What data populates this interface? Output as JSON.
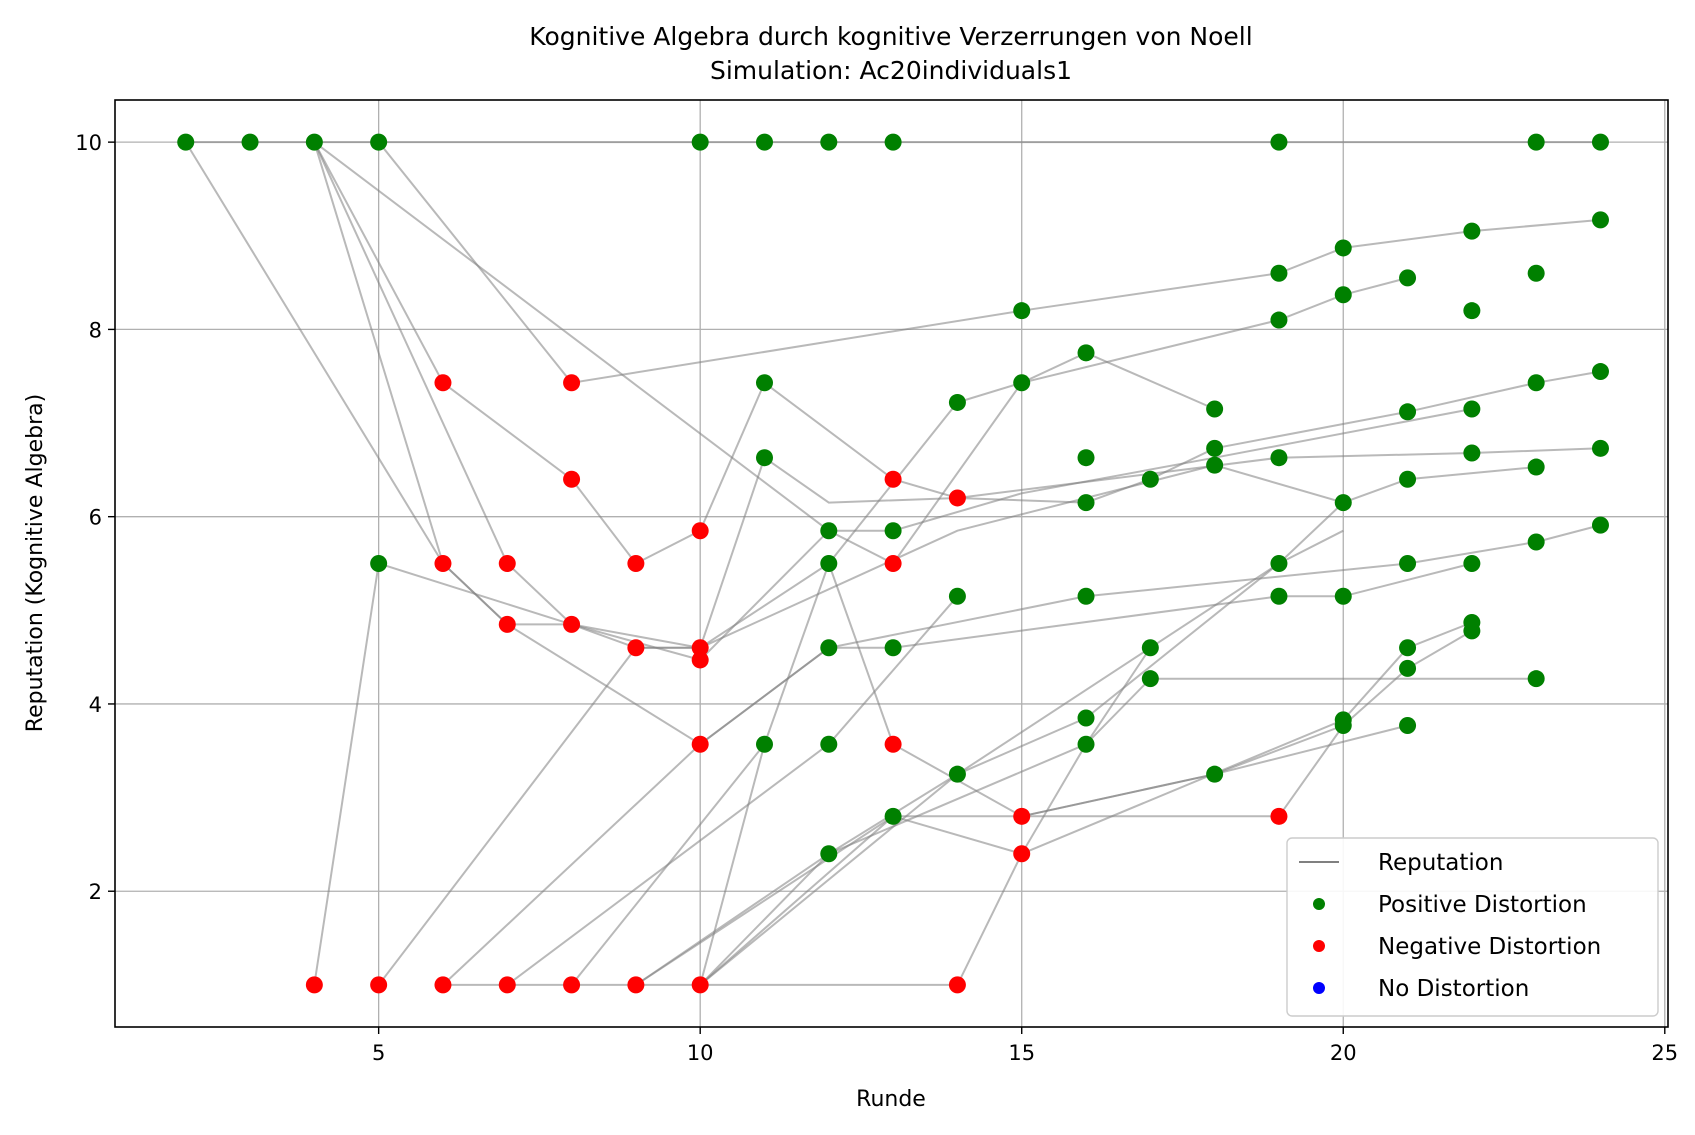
{
  "chart_data": {
    "type": "scatter",
    "title": "Kognitive Algebra durch kognitive Verzerrungen von Noell",
    "subtitle": "Simulation: Ac20individuals1",
    "xlabel": "Runde",
    "ylabel": "Reputation (Kognitive Algebra)",
    "xlim": [
      0.9,
      25.05
    ],
    "ylim": [
      0.55,
      10.45
    ],
    "x_ticks": [
      5,
      10,
      15,
      20,
      25
    ],
    "x_tick_labels": [
      "5",
      "10",
      "15",
      "20",
      "25"
    ],
    "y_ticks": [
      2,
      4,
      6,
      8,
      10
    ],
    "y_tick_labels": [
      "2",
      "4",
      "6",
      "8",
      "10"
    ],
    "grid": true,
    "legend_position": "lower-right",
    "colors": {
      "reputation_line": "#808080",
      "positive": "#008000",
      "negative": "#ff0000",
      "none": "#0000ff"
    },
    "legend": [
      {
        "label": "Reputation",
        "kind": "line",
        "color": "#808080"
      },
      {
        "label": "Positive Distortion",
        "kind": "dot",
        "color": "#008000"
      },
      {
        "label": "Negative Distortion",
        "kind": "dot",
        "color": "#ff0000"
      },
      {
        "label": "No Distortion",
        "kind": "dot",
        "color": "#0000ff"
      }
    ],
    "series": [
      {
        "points": [
          [
            2,
            10
          ],
          [
            3,
            10
          ],
          [
            4,
            10
          ],
          [
            5,
            10
          ],
          [
            10,
            10
          ],
          [
            11,
            10
          ],
          [
            12,
            10
          ],
          [
            13,
            10
          ],
          [
            19,
            10
          ],
          [
            23,
            10
          ],
          [
            24,
            10
          ]
        ]
      },
      {
        "points": [
          [
            2,
            10
          ],
          [
            6,
            5.5
          ],
          [
            7,
            4.85
          ],
          [
            8,
            4.85
          ],
          [
            9,
            4.6
          ],
          [
            10,
            4.6
          ],
          [
            11,
            6.63
          ],
          [
            12,
            6.15
          ],
          [
            14,
            6.2
          ],
          [
            19,
            6.63
          ],
          [
            22,
            6.68
          ],
          [
            24,
            6.73
          ]
        ]
      },
      {
        "points": [
          [
            4,
            10
          ],
          [
            6,
            7.43
          ],
          [
            8,
            6.4
          ],
          [
            9,
            5.5
          ],
          [
            10,
            5.85
          ],
          [
            11,
            7.43
          ],
          [
            13,
            6.4
          ],
          [
            14,
            6.2
          ],
          [
            16,
            6.15
          ],
          [
            17,
            6.4
          ],
          [
            18,
            6.73
          ],
          [
            21,
            7.12
          ],
          [
            23,
            7.43
          ],
          [
            24,
            7.55
          ]
        ]
      },
      {
        "points": [
          [
            4,
            10
          ],
          [
            7,
            5.5
          ],
          [
            8,
            4.85
          ],
          [
            10,
            4.47
          ],
          [
            12,
            5.85
          ],
          [
            13,
            5.5
          ],
          [
            15,
            7.43
          ],
          [
            16,
            7.75
          ],
          [
            18,
            7.15
          ]
        ]
      },
      {
        "points": [
          [
            4,
            10
          ],
          [
            6,
            5.5
          ],
          [
            7,
            4.85
          ],
          [
            10,
            3.57
          ],
          [
            12,
            4.6
          ],
          [
            13,
            4.6
          ],
          [
            19,
            5.15
          ],
          [
            20,
            5.15
          ],
          [
            22,
            5.5
          ]
        ]
      },
      {
        "points": [
          [
            4,
            10
          ],
          [
            12,
            5.85
          ],
          [
            13,
            5.85
          ],
          [
            15,
            6.25
          ],
          [
            18,
            6.63
          ],
          [
            22,
            7.15
          ]
        ]
      },
      {
        "points": [
          [
            5,
            10
          ],
          [
            8,
            7.43
          ],
          [
            15,
            8.2
          ],
          [
            19,
            8.6
          ],
          [
            20,
            8.87
          ],
          [
            22,
            9.05
          ],
          [
            24,
            9.17
          ]
        ]
      },
      {
        "points": [
          [
            4,
            1
          ],
          [
            5,
            5.5
          ],
          [
            8,
            4.85
          ],
          [
            10,
            4.6
          ],
          [
            14,
            5.85
          ],
          [
            18,
            6.55
          ],
          [
            20,
            6.15
          ],
          [
            21,
            6.4
          ],
          [
            23,
            6.53
          ]
        ]
      },
      {
        "points": [
          [
            5,
            1
          ],
          [
            9,
            4.6
          ],
          [
            10,
            4.6
          ],
          [
            12,
            5.5
          ],
          [
            14,
            7.22
          ],
          [
            15,
            7.43
          ],
          [
            19,
            8.1
          ],
          [
            20,
            8.37
          ],
          [
            21,
            8.55
          ]
        ]
      },
      {
        "points": [
          [
            6,
            1
          ],
          [
            10,
            1
          ],
          [
            11,
            3.57
          ],
          [
            12,
            5.5
          ],
          [
            13,
            3.57
          ],
          [
            15,
            2.8
          ],
          [
            18,
            3.25
          ],
          [
            21,
            3.77
          ]
        ]
      },
      {
        "points": [
          [
            6,
            1
          ],
          [
            10,
            3.57
          ],
          [
            12,
            4.6
          ],
          [
            16,
            5.15
          ],
          [
            21,
            5.5
          ],
          [
            23,
            5.73
          ],
          [
            24,
            5.91
          ]
        ]
      },
      {
        "points": [
          [
            7,
            1
          ],
          [
            12,
            3.57
          ],
          [
            14,
            5.15
          ]
        ]
      },
      {
        "points": [
          [
            8,
            1
          ],
          [
            11,
            3.57
          ]
        ]
      },
      {
        "points": [
          [
            9,
            1
          ],
          [
            13,
            2.8
          ],
          [
            15,
            2.4
          ],
          [
            20,
            3.83
          ],
          [
            21,
            4.6
          ],
          [
            22,
            4.87
          ]
        ]
      },
      {
        "points": [
          [
            9,
            1
          ],
          [
            12,
            2.4
          ],
          [
            14,
            3.25
          ],
          [
            16,
            3.85
          ],
          [
            19,
            5.5
          ],
          [
            20,
            6.15
          ]
        ]
      },
      {
        "points": [
          [
            10,
            1
          ],
          [
            12,
            2.4
          ],
          [
            16,
            3.57
          ],
          [
            17,
            4.6
          ],
          [
            19,
            5.5
          ],
          [
            20,
            5.85
          ]
        ]
      },
      {
        "points": [
          [
            10,
            1
          ],
          [
            14,
            1
          ],
          [
            15,
            2.4
          ],
          [
            16,
            3.57
          ],
          [
            17,
            4.27
          ],
          [
            23,
            4.27
          ]
        ]
      },
      {
        "points": [
          [
            10,
            1
          ],
          [
            13,
            2.8
          ],
          [
            19,
            2.8
          ],
          [
            20,
            3.77
          ],
          [
            21,
            4.38
          ],
          [
            22,
            4.78
          ]
        ]
      },
      {
        "points": [
          [
            10,
            1
          ],
          [
            14,
            3.25
          ],
          [
            17,
            4.6
          ]
        ]
      },
      {
        "points": [
          [
            15,
            2.8
          ],
          [
            18,
            3.25
          ],
          [
            20,
            3.77
          ]
        ]
      }
    ],
    "positive_points": [
      [
        2,
        10
      ],
      [
        3,
        10
      ],
      [
        4,
        10
      ],
      [
        5,
        10
      ],
      [
        10,
        10
      ],
      [
        11,
        10
      ],
      [
        12,
        10
      ],
      [
        13,
        10
      ],
      [
        19,
        10
      ],
      [
        23,
        10
      ],
      [
        24,
        10
      ],
      [
        24,
        9.17
      ],
      [
        22,
        9.05
      ],
      [
        20,
        8.87
      ],
      [
        19,
        8.6
      ],
      [
        23,
        8.6
      ],
      [
        21,
        8.55
      ],
      [
        20,
        8.37
      ],
      [
        15,
        8.2
      ],
      [
        22,
        8.2
      ],
      [
        19,
        8.1
      ],
      [
        16,
        7.75
      ],
      [
        24,
        7.55
      ],
      [
        11,
        7.43
      ],
      [
        15,
        7.43
      ],
      [
        23,
        7.43
      ],
      [
        14,
        7.22
      ],
      [
        18,
        7.15
      ],
      [
        22,
        7.15
      ],
      [
        21,
        7.12
      ],
      [
        18,
        6.73
      ],
      [
        24,
        6.73
      ],
      [
        22,
        6.68
      ],
      [
        11,
        6.63
      ],
      [
        16,
        6.63
      ],
      [
        19,
        6.63
      ],
      [
        18,
        6.55
      ],
      [
        23,
        6.53
      ],
      [
        17,
        6.4
      ],
      [
        21,
        6.4
      ],
      [
        16,
        6.15
      ],
      [
        20,
        6.15
      ],
      [
        24,
        5.91
      ],
      [
        12,
        5.85
      ],
      [
        13,
        5.85
      ],
      [
        23,
        5.73
      ],
      [
        5,
        5.5
      ],
      [
        12,
        5.5
      ],
      [
        19,
        5.5
      ],
      [
        21,
        5.5
      ],
      [
        22,
        5.5
      ],
      [
        14,
        5.15
      ],
      [
        16,
        5.15
      ],
      [
        19,
        5.15
      ],
      [
        20,
        5.15
      ],
      [
        22,
        4.87
      ],
      [
        22,
        4.78
      ],
      [
        12,
        4.6
      ],
      [
        13,
        4.6
      ],
      [
        17,
        4.6
      ],
      [
        21,
        4.6
      ],
      [
        21,
        4.38
      ],
      [
        17,
        4.27
      ],
      [
        23,
        4.27
      ],
      [
        16,
        3.85
      ],
      [
        20,
        3.83
      ],
      [
        20,
        3.77
      ],
      [
        21,
        3.77
      ],
      [
        11,
        3.57
      ],
      [
        12,
        3.57
      ],
      [
        16,
        3.57
      ],
      [
        14,
        3.25
      ],
      [
        18,
        3.25
      ],
      [
        13,
        2.8
      ],
      [
        12,
        2.4
      ]
    ],
    "negative_points": [
      [
        6,
        7.43
      ],
      [
        8,
        7.43
      ],
      [
        8,
        6.4
      ],
      [
        13,
        6.4
      ],
      [
        14,
        6.2
      ],
      [
        10,
        5.85
      ],
      [
        6,
        5.5
      ],
      [
        7,
        5.5
      ],
      [
        9,
        5.5
      ],
      [
        13,
        5.5
      ],
      [
        7,
        4.85
      ],
      [
        8,
        4.85
      ],
      [
        9,
        4.6
      ],
      [
        10,
        4.6
      ],
      [
        10,
        4.47
      ],
      [
        10,
        3.57
      ],
      [
        13,
        3.57
      ],
      [
        15,
        2.8
      ],
      [
        19,
        2.8
      ],
      [
        15,
        2.4
      ],
      [
        4,
        1
      ],
      [
        5,
        1
      ],
      [
        6,
        1
      ],
      [
        7,
        1
      ],
      [
        8,
        1
      ],
      [
        9,
        1
      ],
      [
        10,
        1
      ],
      [
        14,
        1
      ]
    ],
    "none_points": []
  }
}
